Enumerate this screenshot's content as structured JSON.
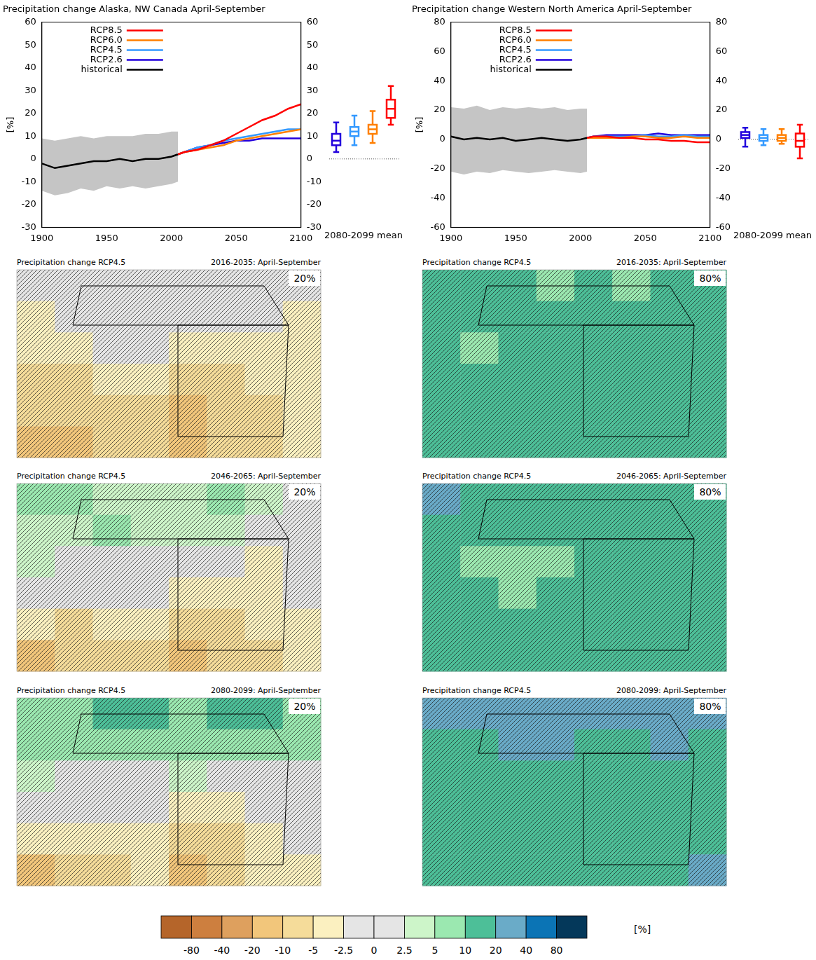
{
  "chart_data": [
    {
      "type": "line",
      "title": "Precipitation change Alaska, NW Canada April-September",
      "y_label": "[%]",
      "box_label": "2080-2099 mean",
      "xlim": [
        1900,
        2100
      ],
      "xticks": [
        1900,
        1950,
        2000,
        2050,
        2100
      ],
      "ylim": [
        -30,
        60
      ],
      "yticks": [
        -30,
        -20,
        -10,
        0,
        10,
        20,
        30,
        40,
        50,
        60
      ],
      "y2lim": [
        -30,
        60
      ],
      "y2ticks": [
        -30,
        -20,
        -10,
        0,
        10,
        20,
        30,
        40,
        50,
        60
      ],
      "grid": false,
      "legend": "upper left",
      "series": [
        {
          "name": "RCP8.5",
          "color": "#ff0000",
          "x": [
            2005,
            2010,
            2020,
            2030,
            2040,
            2050,
            2060,
            2070,
            2080,
            2090,
            2100
          ],
          "values": [
            2,
            3,
            4,
            6,
            8,
            11,
            14,
            17,
            19,
            22,
            24
          ]
        },
        {
          "name": "RCP6.0",
          "color": "#ff7f00",
          "x": [
            2005,
            2010,
            2020,
            2030,
            2040,
            2050,
            2060,
            2070,
            2080,
            2090,
            2100
          ],
          "values": [
            2,
            3,
            4,
            5,
            6,
            8,
            9,
            10,
            11,
            12,
            13
          ]
        },
        {
          "name": "RCP4.5",
          "color": "#3399ff",
          "x": [
            2005,
            2010,
            2020,
            2030,
            2040,
            2050,
            2060,
            2070,
            2080,
            2090,
            2100
          ],
          "values": [
            2,
            3,
            5,
            6,
            8,
            9,
            10,
            11,
            12,
            13,
            13
          ]
        },
        {
          "name": "RCP2.6",
          "color": "#2200dd",
          "x": [
            2005,
            2010,
            2020,
            2030,
            2040,
            2050,
            2060,
            2070,
            2080,
            2090,
            2100
          ],
          "values": [
            2,
            3,
            5,
            6,
            7,
            8,
            8,
            9,
            9,
            9,
            9
          ]
        },
        {
          "name": "historical",
          "color": "#000000",
          "x": [
            1900,
            1910,
            1920,
            1930,
            1940,
            1950,
            1960,
            1970,
            1980,
            1990,
            2000,
            2005
          ],
          "values": [
            -2,
            -4,
            -3,
            -2,
            -1,
            -1,
            0,
            -1,
            0,
            0,
            1,
            2
          ],
          "range_low": [
            -14,
            -16,
            -15,
            -13,
            -14,
            -12,
            -13,
            -12,
            -13,
            -12,
            -11,
            -10
          ],
          "range_high": [
            9,
            8,
            9,
            10,
            9,
            10,
            10,
            10,
            11,
            11,
            12,
            12
          ]
        }
      ],
      "boxes": [
        {
          "name": "RCP2.6",
          "low": 3,
          "q1": 6,
          "median": 8,
          "q3": 11,
          "high": 16
        },
        {
          "name": "RCP4.5",
          "low": 6,
          "q1": 10,
          "median": 12,
          "q3": 14,
          "high": 19
        },
        {
          "name": "RCP6.0",
          "low": 7,
          "q1": 11,
          "median": 13,
          "q3": 15,
          "high": 21
        },
        {
          "name": "RCP8.5",
          "low": 15,
          "q1": 18,
          "median": 22,
          "q3": 26,
          "high": 32
        }
      ]
    },
    {
      "type": "line",
      "title": "Precipitation change Western North America April-September",
      "y_label": "[%]",
      "box_label": "2080-2099 mean",
      "xlim": [
        1900,
        2100
      ],
      "xticks": [
        1900,
        1950,
        2000,
        2050,
        2100
      ],
      "ylim": [
        -60,
        80
      ],
      "yticks": [
        -60,
        -40,
        -20,
        0,
        20,
        40,
        60,
        80
      ],
      "y2lim": [
        -60,
        80
      ],
      "y2ticks": [
        -60,
        -40,
        -20,
        0,
        20,
        40,
        60,
        80
      ],
      "grid": false,
      "legend": "upper left",
      "series": [
        {
          "name": "RCP8.5",
          "color": "#ff0000",
          "x": [
            2005,
            2010,
            2020,
            2030,
            2040,
            2050,
            2060,
            2070,
            2080,
            2090,
            2100
          ],
          "values": [
            1,
            2,
            2,
            1,
            1,
            0,
            0,
            -1,
            -1,
            -2,
            -2
          ]
        },
        {
          "name": "RCP6.0",
          "color": "#ff7f00",
          "x": [
            2005,
            2010,
            2020,
            2030,
            2040,
            2050,
            2060,
            2070,
            2080,
            2090,
            2100
          ],
          "values": [
            1,
            1,
            1,
            1,
            2,
            2,
            1,
            1,
            2,
            1,
            1
          ]
        },
        {
          "name": "RCP4.5",
          "color": "#3399ff",
          "x": [
            2005,
            2010,
            2020,
            2030,
            2040,
            2050,
            2060,
            2070,
            2080,
            2090,
            2100
          ],
          "values": [
            1,
            2,
            2,
            2,
            2,
            3,
            2,
            2,
            3,
            2,
            2
          ]
        },
        {
          "name": "RCP2.6",
          "color": "#2200dd",
          "x": [
            2005,
            2010,
            2020,
            2030,
            2040,
            2050,
            2060,
            2070,
            2080,
            2090,
            2100
          ],
          "values": [
            1,
            2,
            3,
            3,
            3,
            3,
            4,
            3,
            3,
            3,
            3
          ]
        },
        {
          "name": "historical",
          "color": "#000000",
          "x": [
            1900,
            1910,
            1920,
            1930,
            1940,
            1950,
            1960,
            1970,
            1980,
            1990,
            2000,
            2005
          ],
          "values": [
            2,
            0,
            1,
            0,
            1,
            -1,
            0,
            1,
            0,
            -1,
            0,
            1
          ],
          "range_low": [
            -22,
            -24,
            -22,
            -23,
            -21,
            -22,
            -23,
            -22,
            -21,
            -22,
            -23,
            -22
          ],
          "range_high": [
            22,
            21,
            23,
            20,
            22,
            21,
            22,
            21,
            22,
            20,
            21,
            21
          ]
        }
      ],
      "boxes": [
        {
          "name": "RCP2.6",
          "low": -5,
          "q1": 1,
          "median": 3,
          "q3": 5,
          "high": 8
        },
        {
          "name": "RCP4.5",
          "low": -4,
          "q1": -1,
          "median": 1,
          "q3": 3,
          "high": 7
        },
        {
          "name": "RCP6.0",
          "low": -3,
          "q1": -1,
          "median": 1,
          "q3": 3,
          "high": 7
        },
        {
          "name": "RCP8.5",
          "low": -13,
          "q1": -5,
          "median": -1,
          "q3": 4,
          "high": 10
        }
      ]
    }
  ],
  "maps": [
    {
      "title": "Precipitation change RCP4.5",
      "period": "2016-2035: April-September",
      "percentile": "20%",
      "cells": [
        [
          0,
          0,
          0,
          0,
          0,
          0,
          0,
          0
        ],
        [
          -3,
          0,
          0,
          0,
          0,
          0,
          0,
          -3
        ],
        [
          -3,
          -3,
          0,
          0,
          -3,
          -3,
          -3,
          -3
        ],
        [
          -7,
          -7,
          -3,
          -3,
          -7,
          -7,
          -3,
          -3
        ],
        [
          -7,
          -7,
          -7,
          -7,
          -15,
          -7,
          -7,
          -3
        ],
        [
          -15,
          -15,
          -7,
          -7,
          -15,
          -7,
          -7,
          -3
        ]
      ]
    },
    {
      "title": "Precipitation change RCP4.5",
      "period": "2016-2035: April-September",
      "percentile": "80%",
      "cells": [
        [
          15,
          15,
          15,
          7,
          15,
          7,
          15,
          15
        ],
        [
          15,
          15,
          15,
          15,
          15,
          15,
          15,
          15
        ],
        [
          15,
          7,
          15,
          15,
          15,
          15,
          15,
          15
        ],
        [
          15,
          15,
          15,
          15,
          15,
          15,
          15,
          15
        ],
        [
          15,
          15,
          15,
          15,
          15,
          15,
          15,
          15
        ],
        [
          15,
          15,
          15,
          15,
          15,
          15,
          15,
          15
        ]
      ]
    },
    {
      "title": "Precipitation change RCP4.5",
      "period": "2046-2065: April-September",
      "percentile": "20%",
      "cells": [
        [
          7,
          7,
          4,
          4,
          4,
          7,
          4,
          0
        ],
        [
          4,
          4,
          7,
          4,
          4,
          4,
          0,
          0
        ],
        [
          4,
          0,
          0,
          0,
          0,
          0,
          -3,
          0
        ],
        [
          0,
          0,
          0,
          0,
          -3,
          -3,
          -3,
          0
        ],
        [
          -3,
          -7,
          -3,
          -3,
          -7,
          -7,
          -3,
          -3
        ],
        [
          -15,
          -7,
          -7,
          -7,
          -15,
          -7,
          -7,
          -3
        ]
      ]
    },
    {
      "title": "Precipitation change RCP4.5",
      "period": "2046-2065: April-September",
      "percentile": "80%",
      "cells": [
        [
          30,
          15,
          15,
          15,
          15,
          15,
          15,
          15
        ],
        [
          15,
          15,
          15,
          15,
          15,
          15,
          15,
          15
        ],
        [
          15,
          7,
          7,
          7,
          15,
          15,
          15,
          15
        ],
        [
          15,
          15,
          7,
          15,
          15,
          15,
          15,
          15
        ],
        [
          15,
          15,
          15,
          15,
          15,
          15,
          15,
          15
        ],
        [
          15,
          15,
          15,
          15,
          15,
          15,
          15,
          15
        ]
      ]
    },
    {
      "title": "Precipitation change RCP4.5",
      "period": "2080-2099: April-September",
      "percentile": "20%",
      "cells": [
        [
          7,
          7,
          15,
          15,
          7,
          15,
          15,
          7
        ],
        [
          7,
          7,
          7,
          7,
          7,
          7,
          7,
          7
        ],
        [
          4,
          0,
          0,
          0,
          4,
          0,
          0,
          0
        ],
        [
          0,
          0,
          0,
          0,
          -3,
          -3,
          0,
          0
        ],
        [
          -3,
          -3,
          -3,
          -3,
          -7,
          -7,
          -3,
          0
        ],
        [
          -15,
          -7,
          -7,
          -3,
          -15,
          -7,
          -3,
          -3
        ]
      ]
    },
    {
      "title": "Precipitation change RCP4.5",
      "period": "2080-2099: April-September",
      "percentile": "80%",
      "cells": [
        [
          30,
          30,
          30,
          30,
          30,
          30,
          30,
          30
        ],
        [
          15,
          15,
          30,
          30,
          15,
          15,
          30,
          15
        ],
        [
          15,
          15,
          15,
          15,
          15,
          15,
          15,
          15
        ],
        [
          15,
          15,
          15,
          15,
          15,
          15,
          15,
          15
        ],
        [
          15,
          15,
          15,
          15,
          15,
          15,
          15,
          15
        ],
        [
          15,
          15,
          15,
          15,
          15,
          15,
          15,
          30
        ]
      ]
    }
  ],
  "colorbar": {
    "label": "[%]",
    "ticks": [
      -80,
      -40,
      -20,
      -10,
      -5,
      -2.5,
      0,
      2.5,
      5,
      10,
      20,
      40,
      80
    ],
    "colors": [
      "#b5652a",
      "#cd7f3f",
      "#dea05e",
      "#f2c67b",
      "#f5dc9a",
      "#fbf0c0",
      "#e5e5e5",
      "#e5e5e5",
      "#cdf5c9",
      "#9be8b0",
      "#4dbf98",
      "#6aabc8",
      "#0b74b5",
      "#04385a"
    ]
  }
}
